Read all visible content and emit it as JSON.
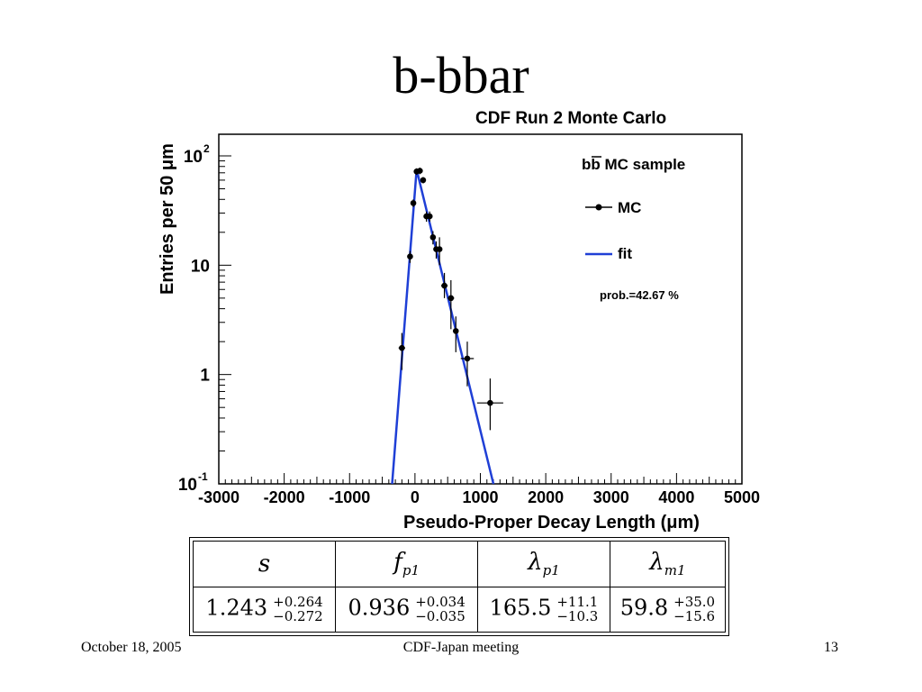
{
  "slide": {
    "title": "b-bbar",
    "footer_left": "October 18, 2005",
    "footer_center": "CDF-Japan meeting",
    "footer_right": "13"
  },
  "chart_data": {
    "type": "scatter",
    "title": "CDF Run 2 Monte Carlo",
    "xlabel": "Pseudo-Proper Decay Length (μm)",
    "ylabel": "Entries per 50 μm",
    "xlim": [
      -3000,
      5000
    ],
    "ylim": [
      0.1,
      200
    ],
    "yscale": "log",
    "x_ticks": [
      "-3000",
      "-2000",
      "-1000",
      "0",
      "1000",
      "2000",
      "3000",
      "4000",
      "5000"
    ],
    "y_ticks": [
      {
        "value": 100,
        "base": "10",
        "exp": "2"
      },
      {
        "value": 10,
        "base": "10",
        "exp": ""
      },
      {
        "value": 1,
        "base": "1",
        "exp": ""
      },
      {
        "value": 0.1,
        "base": "10",
        "exp": "-1"
      }
    ],
    "legend": {
      "placement": "top-right",
      "header_prefix": "b",
      "header_bar": "b",
      "header_suffix": " MC sample",
      "entries": [
        "MC",
        "fit"
      ],
      "prob": "prob.=42.67 %"
    },
    "series": [
      {
        "name": "MC",
        "points": [
          {
            "x": -200,
            "y": 1.75,
            "elo": 1.1,
            "ehi": 2.4,
            "xerr": 50
          },
          {
            "x": -75,
            "y": 12,
            "elo": 10.5,
            "ehi": 13.5,
            "xerr": 25
          },
          {
            "x": -25,
            "y": 37,
            "elo": 34,
            "ehi": 40,
            "xerr": 25
          },
          {
            "x": 25,
            "y": 72,
            "elo": 67,
            "ehi": 77,
            "xerr": 25
          },
          {
            "x": 75,
            "y": 73,
            "elo": 68,
            "ehi": 78,
            "xerr": 25
          },
          {
            "x": 125,
            "y": 60,
            "elo": 56,
            "ehi": 64,
            "xerr": 25
          },
          {
            "x": 175,
            "y": 28,
            "elo": 25,
            "ehi": 31,
            "xerr": 25
          },
          {
            "x": 225,
            "y": 28,
            "elo": 25,
            "ehi": 31,
            "xerr": 25
          },
          {
            "x": 275,
            "y": 18,
            "elo": 15.5,
            "ehi": 20.5,
            "xerr": 25
          },
          {
            "x": 325,
            "y": 14,
            "elo": 11.5,
            "ehi": 16.5,
            "xerr": 25
          },
          {
            "x": 375,
            "y": 14,
            "elo": 10,
            "ehi": 18,
            "xerr": 25
          },
          {
            "x": 450,
            "y": 6.5,
            "elo": 5,
            "ehi": 8.5,
            "xerr": 50
          },
          {
            "x": 550,
            "y": 5,
            "elo": 2.6,
            "ehi": 7.3,
            "xerr": 50
          },
          {
            "x": 625,
            "y": 2.5,
            "elo": 1.6,
            "ehi": 3.4,
            "xerr": 25
          },
          {
            "x": 800,
            "y": 1.4,
            "elo": 0.78,
            "ehi": 2.0,
            "xerr": 100
          },
          {
            "x": 1150,
            "y": 0.55,
            "elo": 0.31,
            "ehi": 0.92,
            "xerr": 200
          }
        ]
      },
      {
        "name": "fit",
        "points": [
          {
            "x": -350,
            "y": 0.1
          },
          {
            "x": 25,
            "y": 75
          },
          {
            "x": 1200,
            "y": 0.1
          }
        ]
      }
    ],
    "colors": {
      "fit": "#1f3fd6",
      "mc": "#000000"
    }
  },
  "fit_table": {
    "headers": [
      {
        "base": "s",
        "sub": ""
      },
      {
        "base": "f",
        "sub": "p1"
      },
      {
        "base": "λ",
        "sub": "p1"
      },
      {
        "base": "λ",
        "sub": "m1"
      }
    ],
    "values": [
      {
        "value": "1.243",
        "plus": "+0.264",
        "minus": "−0.272"
      },
      {
        "value": "0.936",
        "plus": "+0.034",
        "minus": "−0.035"
      },
      {
        "value": "165.5",
        "plus": "+11.1",
        "minus": "−10.3"
      },
      {
        "value": "59.8",
        "plus": "+35.0",
        "minus": "−15.6"
      }
    ]
  }
}
